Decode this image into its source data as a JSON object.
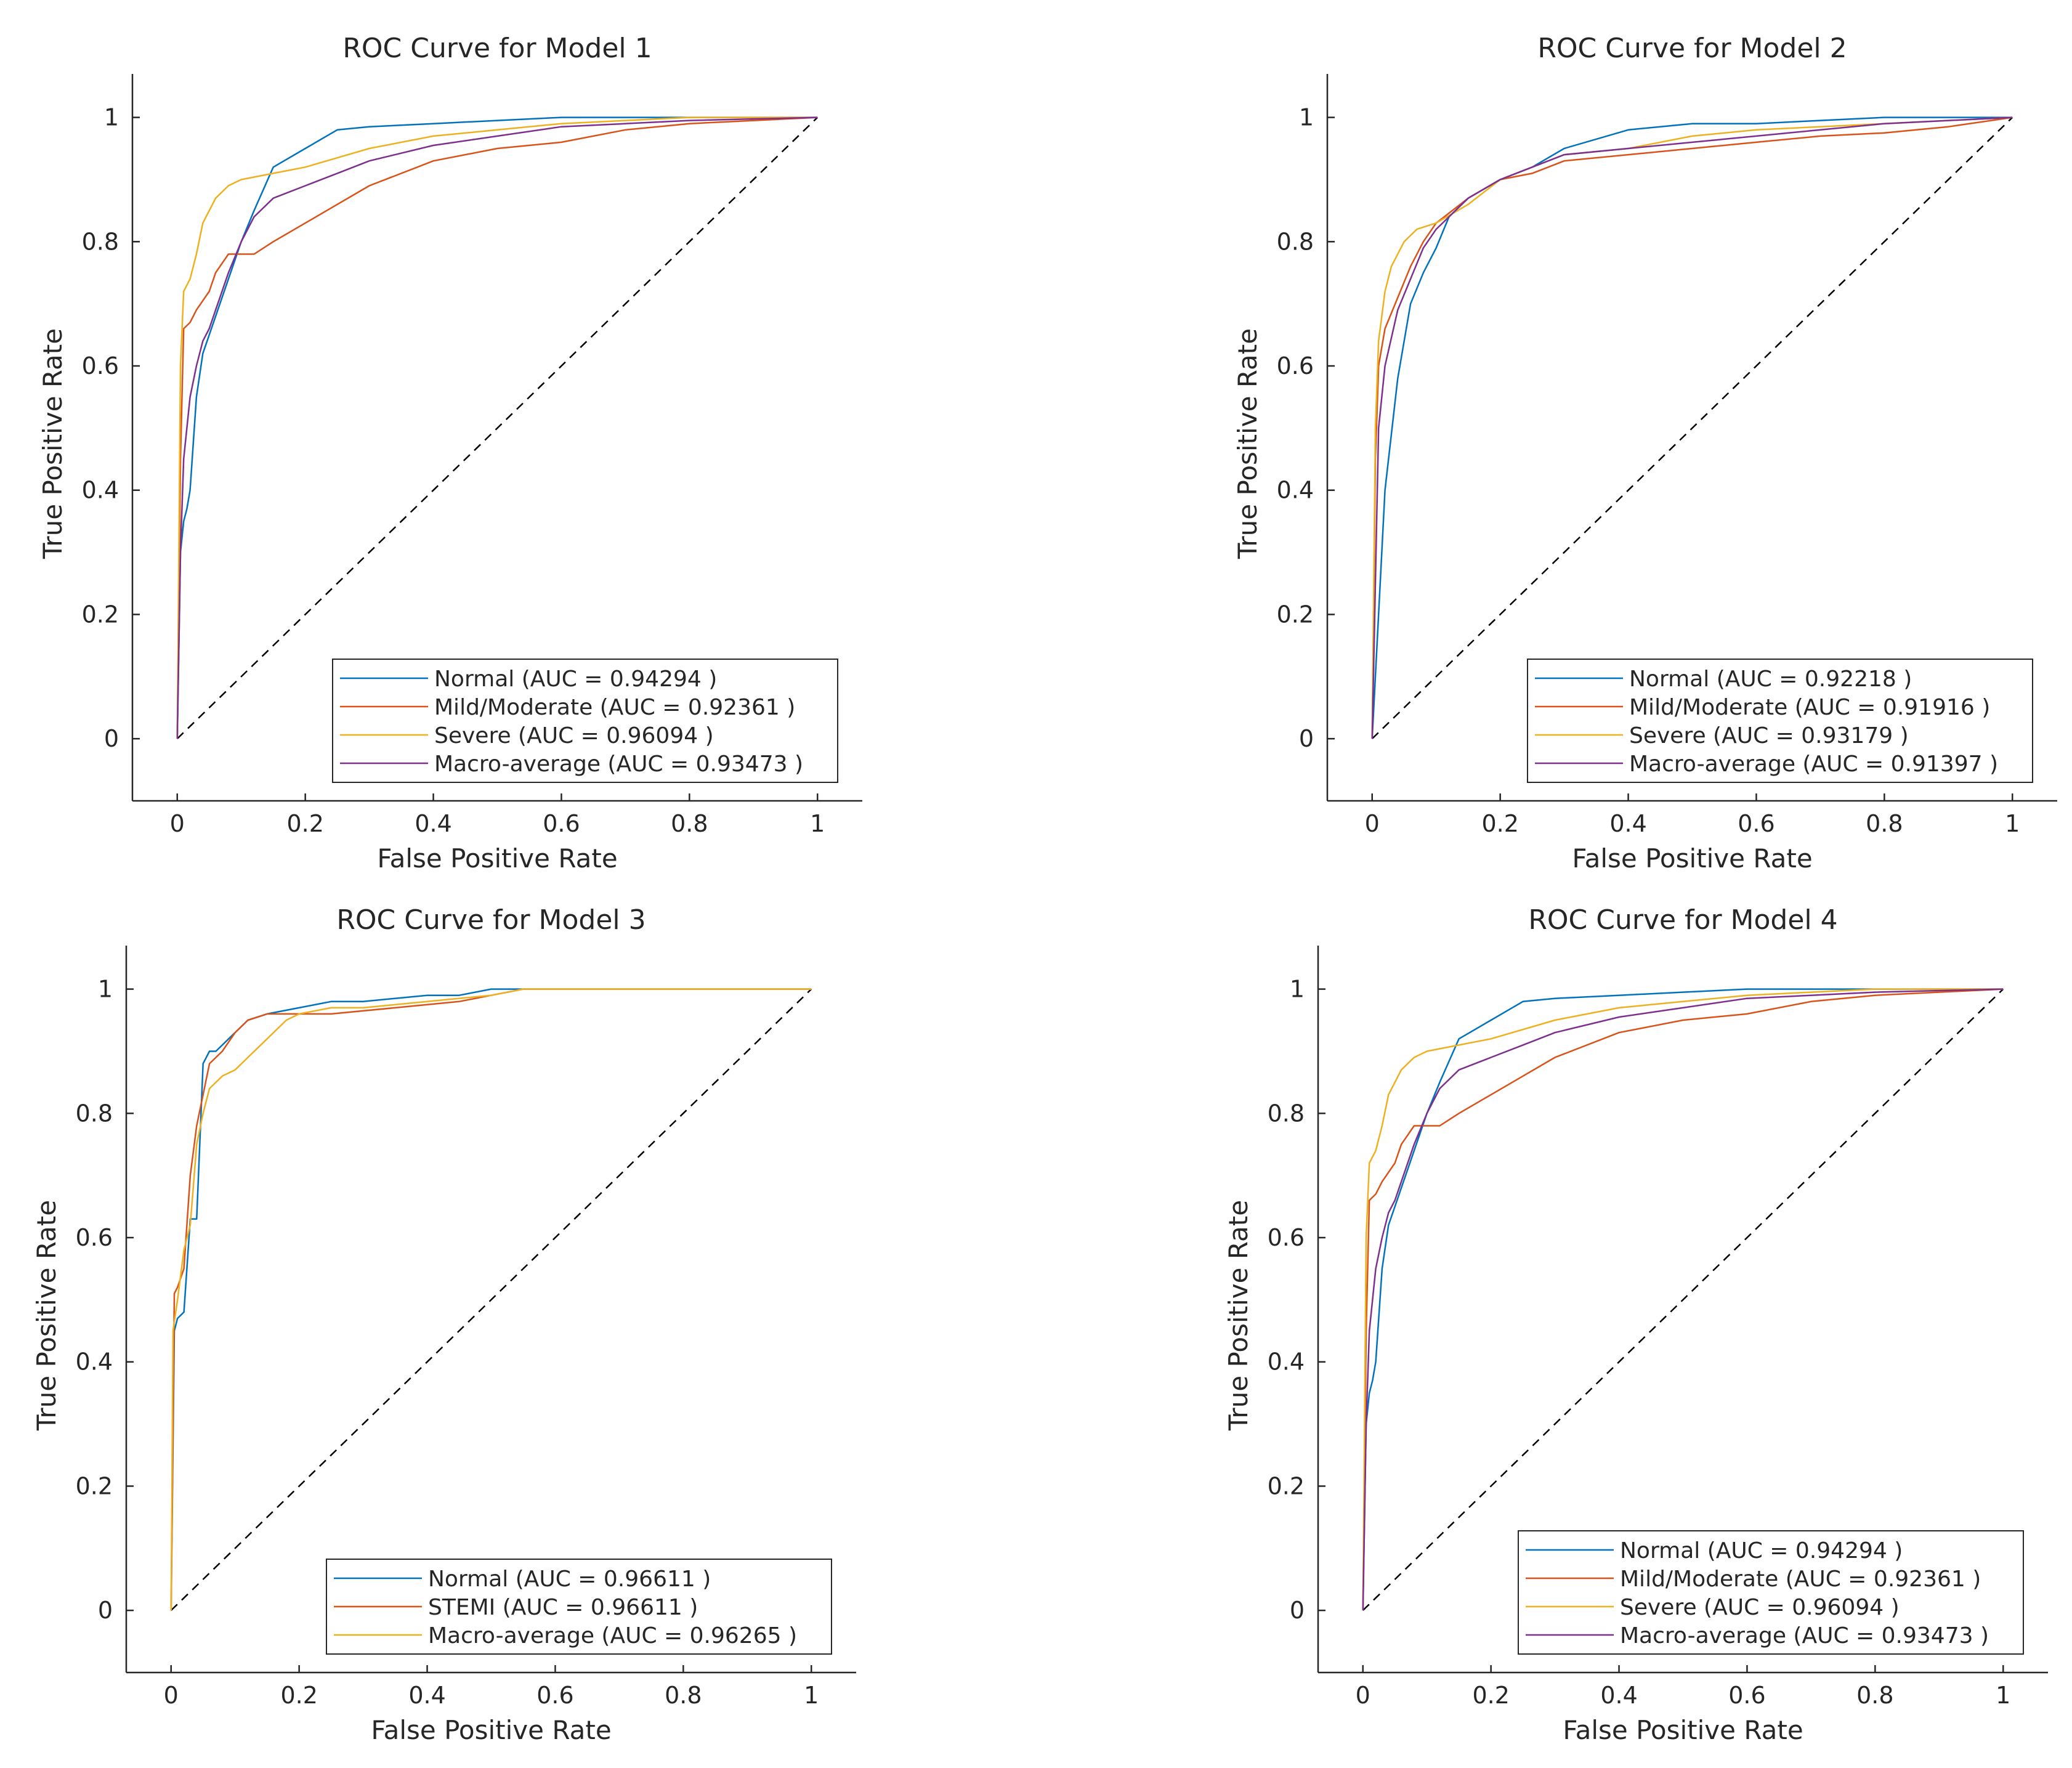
{
  "figure": {
    "description": "Four ROC curve panels"
  },
  "chart_data": [
    {
      "type": "line",
      "title": "ROC Curve for Model 1",
      "xlabel": "False Positive Rate",
      "ylabel": "True Positive Rate",
      "xlim": [
        -0.07,
        1.07
      ],
      "ylim": [
        -0.1,
        1.07
      ],
      "xticks": [
        "0",
        "0.2",
        "0.4",
        "0.6",
        "0.8",
        "1"
      ],
      "yticks": [
        "0",
        "0.2",
        "0.4",
        "0.6",
        "0.8",
        "1"
      ],
      "legend_position": "bottom-right",
      "series": [
        {
          "name": "Normal (AUC = 0.94294 )",
          "color": "#0072BD",
          "x": [
            0,
            0.005,
            0.01,
            0.015,
            0.02,
            0.03,
            0.04,
            0.05,
            0.06,
            0.08,
            0.1,
            0.12,
            0.15,
            0.2,
            0.25,
            0.3,
            0.4,
            0.5,
            0.6,
            0.7,
            1
          ],
          "y": [
            0,
            0.3,
            0.35,
            0.37,
            0.4,
            0.55,
            0.62,
            0.65,
            0.68,
            0.74,
            0.8,
            0.85,
            0.92,
            0.95,
            0.98,
            0.985,
            0.99,
            0.995,
            1,
            1,
            1
          ]
        },
        {
          "name": "Mild/Moderate (AUC = 0.92361 )",
          "color": "#D95319",
          "x": [
            0,
            0.005,
            0.01,
            0.02,
            0.03,
            0.05,
            0.06,
            0.08,
            0.1,
            0.12,
            0.15,
            0.2,
            0.25,
            0.3,
            0.4,
            0.5,
            0.6,
            0.7,
            0.8,
            1
          ],
          "y": [
            0,
            0.45,
            0.66,
            0.67,
            0.69,
            0.72,
            0.75,
            0.78,
            0.78,
            0.78,
            0.8,
            0.83,
            0.86,
            0.89,
            0.93,
            0.95,
            0.96,
            0.98,
            0.99,
            1
          ]
        },
        {
          "name": "Severe (AUC = 0.96094 )",
          "color": "#EDB120",
          "x": [
            0,
            0.005,
            0.01,
            0.02,
            0.03,
            0.04,
            0.05,
            0.06,
            0.08,
            0.1,
            0.15,
            0.2,
            0.3,
            0.4,
            0.5,
            0.6,
            0.7,
            0.8,
            1
          ],
          "y": [
            0,
            0.6,
            0.72,
            0.74,
            0.78,
            0.83,
            0.85,
            0.87,
            0.89,
            0.9,
            0.91,
            0.92,
            0.95,
            0.97,
            0.98,
            0.99,
            0.995,
            1,
            1
          ]
        },
        {
          "name": "Macro-average (AUC = 0.93473 )",
          "color": "#7E2F8E",
          "x": [
            0,
            0.005,
            0.01,
            0.02,
            0.03,
            0.04,
            0.05,
            0.06,
            0.08,
            0.1,
            0.12,
            0.15,
            0.2,
            0.25,
            0.3,
            0.4,
            0.5,
            0.6,
            0.7,
            0.8,
            1
          ],
          "y": [
            0,
            0.3,
            0.45,
            0.55,
            0.6,
            0.64,
            0.66,
            0.69,
            0.75,
            0.8,
            0.84,
            0.87,
            0.89,
            0.91,
            0.93,
            0.955,
            0.97,
            0.985,
            0.99,
            0.995,
            1
          ]
        }
      ]
    },
    {
      "type": "line",
      "title": "ROC Curve for Model 2",
      "xlabel": "False Positive Rate",
      "ylabel": "True Positive Rate",
      "xlim": [
        -0.07,
        1.07
      ],
      "ylim": [
        -0.1,
        1.07
      ],
      "xticks": [
        "0",
        "0.2",
        "0.4",
        "0.6",
        "0.8",
        "1"
      ],
      "yticks": [
        "0",
        "0.2",
        "0.4",
        "0.6",
        "0.8",
        "1"
      ],
      "legend_position": "bottom-right",
      "series": [
        {
          "name": "Normal (AUC = 0.92218 )",
          "color": "#0072BD",
          "x": [
            0,
            0.02,
            0.04,
            0.06,
            0.08,
            0.1,
            0.12,
            0.15,
            0.2,
            0.25,
            0.3,
            0.4,
            0.5,
            0.6,
            0.7,
            0.8,
            0.9,
            1
          ],
          "y": [
            0,
            0.4,
            0.58,
            0.7,
            0.75,
            0.79,
            0.84,
            0.87,
            0.9,
            0.92,
            0.95,
            0.98,
            0.99,
            0.99,
            0.995,
            1,
            1,
            1
          ]
        },
        {
          "name": "Mild/Moderate (AUC = 0.91916 )",
          "color": "#D95319",
          "x": [
            0,
            0.005,
            0.01,
            0.02,
            0.04,
            0.06,
            0.08,
            0.1,
            0.15,
            0.2,
            0.25,
            0.3,
            0.4,
            0.5,
            0.6,
            0.7,
            0.8,
            0.9,
            1
          ],
          "y": [
            0,
            0.45,
            0.6,
            0.66,
            0.71,
            0.76,
            0.8,
            0.83,
            0.87,
            0.9,
            0.91,
            0.93,
            0.94,
            0.95,
            0.96,
            0.97,
            0.975,
            0.985,
            1
          ]
        },
        {
          "name": "Severe (AUC = 0.93179 )",
          "color": "#EDB120",
          "x": [
            0,
            0.005,
            0.01,
            0.02,
            0.03,
            0.05,
            0.07,
            0.1,
            0.15,
            0.2,
            0.25,
            0.3,
            0.4,
            0.5,
            0.6,
            0.8,
            1
          ],
          "y": [
            0,
            0.5,
            0.64,
            0.72,
            0.76,
            0.8,
            0.82,
            0.83,
            0.86,
            0.9,
            0.92,
            0.94,
            0.95,
            0.97,
            0.98,
            0.99,
            1
          ]
        },
        {
          "name": "Macro-average (AUC = 0.91397 )",
          "color": "#7E2F8E",
          "x": [
            0,
            0.01,
            0.02,
            0.04,
            0.06,
            0.08,
            0.1,
            0.12,
            0.15,
            0.2,
            0.25,
            0.3,
            0.4,
            0.5,
            0.6,
            0.7,
            0.8,
            1
          ],
          "y": [
            0,
            0.5,
            0.6,
            0.69,
            0.74,
            0.79,
            0.82,
            0.84,
            0.87,
            0.9,
            0.92,
            0.94,
            0.95,
            0.96,
            0.97,
            0.98,
            0.99,
            1
          ]
        }
      ]
    },
    {
      "type": "line",
      "title": "ROC Curve for Model 3",
      "xlabel": "False Positive Rate",
      "ylabel": "True Positive Rate",
      "xlim": [
        -0.07,
        1.07
      ],
      "ylim": [
        -0.1,
        1.07
      ],
      "xticks": [
        "0",
        "0.2",
        "0.4",
        "0.6",
        "0.8",
        "1"
      ],
      "yticks": [
        "0",
        "0.2",
        "0.4",
        "0.6",
        "0.8",
        "1"
      ],
      "legend_position": "bottom-right",
      "series": [
        {
          "name": "Normal (AUC = 0.96611 )",
          "color": "#0072BD",
          "x": [
            0,
            0.005,
            0.01,
            0.02,
            0.03,
            0.04,
            0.05,
            0.06,
            0.07,
            0.1,
            0.12,
            0.15,
            0.2,
            0.25,
            0.3,
            0.4,
            0.45,
            0.5,
            0.55,
            1
          ],
          "y": [
            0,
            0.45,
            0.47,
            0.48,
            0.63,
            0.63,
            0.88,
            0.9,
            0.9,
            0.93,
            0.95,
            0.96,
            0.97,
            0.98,
            0.98,
            0.99,
            0.99,
            1,
            1,
            1
          ]
        },
        {
          "name": "STEMI (AUC = 0.96611 )",
          "color": "#D95319",
          "x": [
            0,
            0.005,
            0.01,
            0.02,
            0.03,
            0.04,
            0.05,
            0.06,
            0.08,
            0.1,
            0.12,
            0.15,
            0.2,
            0.25,
            0.35,
            0.45,
            0.5,
            0.55,
            1
          ],
          "y": [
            0,
            0.51,
            0.52,
            0.55,
            0.7,
            0.78,
            0.83,
            0.88,
            0.9,
            0.93,
            0.95,
            0.96,
            0.96,
            0.96,
            0.97,
            0.98,
            0.99,
            1,
            1
          ]
        },
        {
          "name": "Macro-average (AUC = 0.96265 )",
          "color": "#EDB120",
          "x": [
            0,
            0.003,
            0.01,
            0.02,
            0.03,
            0.04,
            0.05,
            0.06,
            0.08,
            0.1,
            0.12,
            0.15,
            0.18,
            0.2,
            0.25,
            0.3,
            0.4,
            0.5,
            0.55,
            1
          ],
          "y": [
            0,
            0.45,
            0.5,
            0.58,
            0.62,
            0.75,
            0.8,
            0.84,
            0.86,
            0.87,
            0.89,
            0.92,
            0.95,
            0.96,
            0.97,
            0.97,
            0.98,
            0.99,
            1,
            1
          ]
        }
      ]
    },
    {
      "type": "line",
      "title": "ROC Curve for Model 4",
      "xlabel": "False Positive Rate",
      "ylabel": "True Positive Rate",
      "xlim": [
        -0.07,
        1.07
      ],
      "ylim": [
        -0.1,
        1.07
      ],
      "xticks": [
        "0",
        "0.2",
        "0.4",
        "0.6",
        "0.8",
        "1"
      ],
      "yticks": [
        "0",
        "0.2",
        "0.4",
        "0.6",
        "0.8",
        "1"
      ],
      "legend_position": "bottom-right",
      "series": [
        {
          "name": "Normal (AUC = 0.94294 )",
          "color": "#0072BD",
          "x": [
            0,
            0.005,
            0.01,
            0.015,
            0.02,
            0.03,
            0.04,
            0.05,
            0.06,
            0.08,
            0.1,
            0.12,
            0.15,
            0.2,
            0.25,
            0.3,
            0.4,
            0.5,
            0.6,
            0.7,
            1
          ],
          "y": [
            0,
            0.3,
            0.35,
            0.37,
            0.4,
            0.55,
            0.62,
            0.65,
            0.68,
            0.74,
            0.8,
            0.85,
            0.92,
            0.95,
            0.98,
            0.985,
            0.99,
            0.995,
            1,
            1,
            1
          ]
        },
        {
          "name": "Mild/Moderate (AUC = 0.92361 )",
          "color": "#D95319",
          "x": [
            0,
            0.005,
            0.01,
            0.02,
            0.03,
            0.05,
            0.06,
            0.08,
            0.1,
            0.12,
            0.15,
            0.2,
            0.25,
            0.3,
            0.4,
            0.5,
            0.6,
            0.7,
            0.8,
            1
          ],
          "y": [
            0,
            0.45,
            0.66,
            0.67,
            0.69,
            0.72,
            0.75,
            0.78,
            0.78,
            0.78,
            0.8,
            0.83,
            0.86,
            0.89,
            0.93,
            0.95,
            0.96,
            0.98,
            0.99,
            1
          ]
        },
        {
          "name": "Severe (AUC = 0.96094 )",
          "color": "#EDB120",
          "x": [
            0,
            0.005,
            0.01,
            0.02,
            0.03,
            0.04,
            0.05,
            0.06,
            0.08,
            0.1,
            0.15,
            0.2,
            0.3,
            0.4,
            0.5,
            0.6,
            0.7,
            0.8,
            1
          ],
          "y": [
            0,
            0.6,
            0.72,
            0.74,
            0.78,
            0.83,
            0.85,
            0.87,
            0.89,
            0.9,
            0.91,
            0.92,
            0.95,
            0.97,
            0.98,
            0.99,
            0.995,
            1,
            1
          ]
        },
        {
          "name": "Macro-average (AUC = 0.93473 )",
          "color": "#7E2F8E",
          "x": [
            0,
            0.005,
            0.01,
            0.02,
            0.03,
            0.04,
            0.05,
            0.06,
            0.08,
            0.1,
            0.12,
            0.15,
            0.2,
            0.25,
            0.3,
            0.4,
            0.5,
            0.6,
            0.7,
            0.8,
            1
          ],
          "y": [
            0,
            0.3,
            0.45,
            0.55,
            0.6,
            0.64,
            0.66,
            0.69,
            0.75,
            0.8,
            0.84,
            0.87,
            0.89,
            0.91,
            0.93,
            0.955,
            0.97,
            0.985,
            0.99,
            0.995,
            1
          ]
        }
      ]
    }
  ]
}
